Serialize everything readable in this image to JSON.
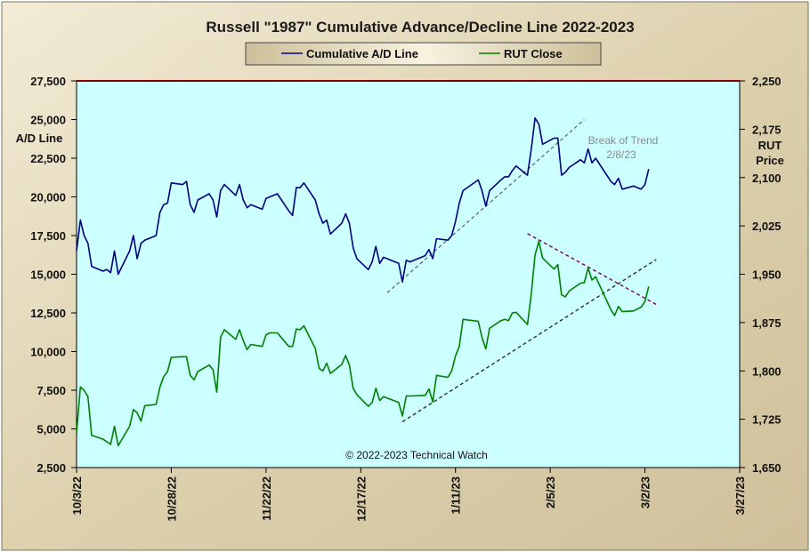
{
  "chart_data": {
    "type": "line",
    "title": "Russell \"1987\" Cumulative Advance/Decline Line 2022-2023",
    "legend": {
      "placement": "top-center",
      "entries": [
        {
          "label": "Cumulative A/D Line",
          "color": "#000080"
        },
        {
          "label": "RUT Close",
          "color": "#008000"
        }
      ]
    },
    "y_left": {
      "label_line1": "A/D Line",
      "range": [
        2500,
        27500
      ],
      "ticks": [
        2500,
        5000,
        7500,
        10000,
        12500,
        15000,
        17500,
        20000,
        22500,
        25000,
        27500
      ],
      "tick_labels": [
        "2,500",
        "5,000",
        "7,500",
        "10,000",
        "12,500",
        "15,000",
        "17,500",
        "20,000",
        "22,500",
        "25,000",
        "27,500"
      ]
    },
    "y_right": {
      "label_line1": "RUT",
      "label_line2": "Price",
      "range": [
        1650,
        2250
      ],
      "ticks": [
        1650,
        1725,
        1800,
        1875,
        1950,
        2025,
        2100,
        2175,
        2250
      ],
      "tick_labels": [
        "1,650",
        "1,725",
        "1,800",
        "1,875",
        "1,950",
        "2,025",
        "2,100",
        "2,175",
        "2,250"
      ]
    },
    "x_axis": {
      "start": "2022-10-03",
      "end": "2023-03-27",
      "ticks": [
        "2022-10-03",
        "2022-10-28",
        "2022-11-22",
        "2022-12-17",
        "2023-01-11",
        "2023-02-05",
        "2023-03-02",
        "2023-03-27"
      ],
      "tick_labels": [
        "10/3/22",
        "10/28/22",
        "11/22/22",
        "12/17/22",
        "1/11/23",
        "2/5/23",
        "3/2/23",
        "3/27/23"
      ]
    },
    "grid": false,
    "series": [
      {
        "name": "Cumulative A/D Line",
        "axis": "left",
        "color": "#000080",
        "points": [
          [
            "2022-10-03",
            16500
          ],
          [
            "2022-10-04",
            18500
          ],
          [
            "2022-10-05",
            17500
          ],
          [
            "2022-10-06",
            17000
          ],
          [
            "2022-10-07",
            15500
          ],
          [
            "2022-10-10",
            15200
          ],
          [
            "2022-10-11",
            15300
          ],
          [
            "2022-10-12",
            15100
          ],
          [
            "2022-10-13",
            16500
          ],
          [
            "2022-10-14",
            15000
          ],
          [
            "2022-10-17",
            16500
          ],
          [
            "2022-10-18",
            17500
          ],
          [
            "2022-10-19",
            16000
          ],
          [
            "2022-10-20",
            17000
          ],
          [
            "2022-10-21",
            17200
          ],
          [
            "2022-10-24",
            17500
          ],
          [
            "2022-10-25",
            19000
          ],
          [
            "2022-10-26",
            19500
          ],
          [
            "2022-10-27",
            19600
          ],
          [
            "2022-10-28",
            20900
          ],
          [
            "2022-10-31",
            20800
          ],
          [
            "2022-11-01",
            21000
          ],
          [
            "2022-11-02",
            19500
          ],
          [
            "2022-11-03",
            19000
          ],
          [
            "2022-11-04",
            19800
          ],
          [
            "2022-11-07",
            20200
          ],
          [
            "2022-11-08",
            19800
          ],
          [
            "2022-11-09",
            18700
          ],
          [
            "2022-11-10",
            20400
          ],
          [
            "2022-11-11",
            20800
          ],
          [
            "2022-11-14",
            20100
          ],
          [
            "2022-11-15",
            20800
          ],
          [
            "2022-11-16",
            19800
          ],
          [
            "2022-11-17",
            19300
          ],
          [
            "2022-11-18",
            19500
          ],
          [
            "2022-11-21",
            19200
          ],
          [
            "2022-11-22",
            19900
          ],
          [
            "2022-11-23",
            20000
          ],
          [
            "2022-11-25",
            20200
          ],
          [
            "2022-11-28",
            19100
          ],
          [
            "2022-11-29",
            18800
          ],
          [
            "2022-11-30",
            20600
          ],
          [
            "2022-12-01",
            20600
          ],
          [
            "2022-12-02",
            20900
          ],
          [
            "2022-12-05",
            19800
          ],
          [
            "2022-12-06",
            18900
          ],
          [
            "2022-12-07",
            18300
          ],
          [
            "2022-12-08",
            18500
          ],
          [
            "2022-12-09",
            17600
          ],
          [
            "2022-12-12",
            18300
          ],
          [
            "2022-12-13",
            18900
          ],
          [
            "2022-12-14",
            18300
          ],
          [
            "2022-12-15",
            16700
          ],
          [
            "2022-12-16",
            16000
          ],
          [
            "2022-12-19",
            15300
          ],
          [
            "2022-12-20",
            15800
          ],
          [
            "2022-12-21",
            16800
          ],
          [
            "2022-12-22",
            15700
          ],
          [
            "2022-12-23",
            16100
          ],
          [
            "2022-12-27",
            15700
          ],
          [
            "2022-12-28",
            14500
          ],
          [
            "2022-12-29",
            15900
          ],
          [
            "2022-12-30",
            15800
          ],
          [
            "2023-01-03",
            16200
          ],
          [
            "2023-01-04",
            16600
          ],
          [
            "2023-01-05",
            16000
          ],
          [
            "2023-01-06",
            17300
          ],
          [
            "2023-01-09",
            17200
          ],
          [
            "2023-01-10",
            17500
          ],
          [
            "2023-01-11",
            18400
          ],
          [
            "2023-01-12",
            19600
          ],
          [
            "2023-01-13",
            20400
          ],
          [
            "2023-01-17",
            21100
          ],
          [
            "2023-01-18",
            20400
          ],
          [
            "2023-01-19",
            19400
          ],
          [
            "2023-01-20",
            20400
          ],
          [
            "2023-01-23",
            21100
          ],
          [
            "2023-01-24",
            21300
          ],
          [
            "2023-01-25",
            21300
          ],
          [
            "2023-01-26",
            21700
          ],
          [
            "2023-01-27",
            22000
          ],
          [
            "2023-01-30",
            21400
          ],
          [
            "2023-01-31",
            23100
          ],
          [
            "2023-02-01",
            25100
          ],
          [
            "2023-02-02",
            24700
          ],
          [
            "2023-02-03",
            23400
          ],
          [
            "2023-02-06",
            23800
          ],
          [
            "2023-02-07",
            23800
          ],
          [
            "2023-02-08",
            21400
          ],
          [
            "2023-02-09",
            21600
          ],
          [
            "2023-02-10",
            21900
          ],
          [
            "2023-02-13",
            22400
          ],
          [
            "2023-02-14",
            22200
          ],
          [
            "2023-02-15",
            23100
          ],
          [
            "2023-02-16",
            22200
          ],
          [
            "2023-02-17",
            22500
          ],
          [
            "2023-02-21",
            21000
          ],
          [
            "2023-02-22",
            20800
          ],
          [
            "2023-02-23",
            21200
          ],
          [
            "2023-02-24",
            20500
          ],
          [
            "2023-02-27",
            20700
          ],
          [
            "2023-02-28",
            20600
          ],
          [
            "2023-03-01",
            20500
          ],
          [
            "2023-03-02",
            20800
          ],
          [
            "2023-03-03",
            21800
          ]
        ]
      },
      {
        "name": "RUT Close",
        "axis": "right",
        "color": "#008000",
        "points": [
          [
            "2022-10-03",
            1703
          ],
          [
            "2022-10-04",
            1775
          ],
          [
            "2022-10-05",
            1770
          ],
          [
            "2022-10-06",
            1760
          ],
          [
            "2022-10-07",
            1700
          ],
          [
            "2022-10-10",
            1694
          ],
          [
            "2022-10-11",
            1690
          ],
          [
            "2022-10-12",
            1686
          ],
          [
            "2022-10-13",
            1714
          ],
          [
            "2022-10-14",
            1684
          ],
          [
            "2022-10-17",
            1714
          ],
          [
            "2022-10-18",
            1740
          ],
          [
            "2022-10-19",
            1735
          ],
          [
            "2022-10-20",
            1722
          ],
          [
            "2022-10-21",
            1746
          ],
          [
            "2022-10-24",
            1748
          ],
          [
            "2022-10-25",
            1775
          ],
          [
            "2022-10-26",
            1791
          ],
          [
            "2022-10-27",
            1799
          ],
          [
            "2022-10-28",
            1821
          ],
          [
            "2022-10-31",
            1822
          ],
          [
            "2022-11-01",
            1822
          ],
          [
            "2022-11-02",
            1793
          ],
          [
            "2022-11-03",
            1786
          ],
          [
            "2022-11-04",
            1799
          ],
          [
            "2022-11-07",
            1809
          ],
          [
            "2022-11-08",
            1802
          ],
          [
            "2022-11-09",
            1767
          ],
          [
            "2022-11-10",
            1852
          ],
          [
            "2022-11-11",
            1864
          ],
          [
            "2022-11-14",
            1849
          ],
          [
            "2022-11-15",
            1864
          ],
          [
            "2022-11-16",
            1847
          ],
          [
            "2022-11-17",
            1833
          ],
          [
            "2022-11-18",
            1841
          ],
          [
            "2022-11-21",
            1838
          ],
          [
            "2022-11-22",
            1856
          ],
          [
            "2022-11-23",
            1859
          ],
          [
            "2022-11-25",
            1859
          ],
          [
            "2022-11-28",
            1838
          ],
          [
            "2022-11-29",
            1838
          ],
          [
            "2022-11-30",
            1865
          ],
          [
            "2022-12-01",
            1864
          ],
          [
            "2022-12-02",
            1870
          ],
          [
            "2022-12-05",
            1835
          ],
          [
            "2022-12-06",
            1804
          ],
          [
            "2022-12-07",
            1800
          ],
          [
            "2022-12-08",
            1812
          ],
          [
            "2022-12-09",
            1796
          ],
          [
            "2022-12-12",
            1810
          ],
          [
            "2022-12-13",
            1824
          ],
          [
            "2022-12-14",
            1809
          ],
          [
            "2022-12-15",
            1773
          ],
          [
            "2022-12-16",
            1763
          ],
          [
            "2022-12-19",
            1745
          ],
          [
            "2022-12-20",
            1751
          ],
          [
            "2022-12-21",
            1773
          ],
          [
            "2022-12-22",
            1754
          ],
          [
            "2022-12-23",
            1760
          ],
          [
            "2022-12-27",
            1751
          ],
          [
            "2022-12-28",
            1730
          ],
          [
            "2022-12-29",
            1761
          ],
          [
            "2022-12-30",
            1761
          ],
          [
            "2023-01-03",
            1762
          ],
          [
            "2023-01-04",
            1772
          ],
          [
            "2023-01-05",
            1752
          ],
          [
            "2023-01-06",
            1793
          ],
          [
            "2023-01-09",
            1790
          ],
          [
            "2023-01-10",
            1800
          ],
          [
            "2023-01-11",
            1823
          ],
          [
            "2023-01-12",
            1838
          ],
          [
            "2023-01-13",
            1880
          ],
          [
            "2023-01-17",
            1877
          ],
          [
            "2023-01-18",
            1852
          ],
          [
            "2023-01-19",
            1834
          ],
          [
            "2023-01-20",
            1866
          ],
          [
            "2023-01-23",
            1878
          ],
          [
            "2023-01-24",
            1880
          ],
          [
            "2023-01-25",
            1878
          ],
          [
            "2023-01-26",
            1890
          ],
          [
            "2023-01-27",
            1891
          ],
          [
            "2023-01-30",
            1872
          ],
          [
            "2023-01-31",
            1920
          ],
          [
            "2023-02-01",
            1980
          ],
          [
            "2023-02-02",
            2001
          ],
          [
            "2023-02-03",
            1975
          ],
          [
            "2023-02-06",
            1958
          ],
          [
            "2023-02-07",
            1965
          ],
          [
            "2023-02-08",
            1918
          ],
          [
            "2023-02-09",
            1915
          ],
          [
            "2023-02-10",
            1924
          ],
          [
            "2023-02-13",
            1936
          ],
          [
            "2023-02-14",
            1937
          ],
          [
            "2023-02-15",
            1960
          ],
          [
            "2023-02-16",
            1941
          ],
          [
            "2023-02-17",
            1946
          ],
          [
            "2023-02-21",
            1895
          ],
          [
            "2023-02-22",
            1886
          ],
          [
            "2023-02-23",
            1900
          ],
          [
            "2023-02-24",
            1892
          ],
          [
            "2023-02-27",
            1893
          ],
          [
            "2023-02-28",
            1896
          ],
          [
            "2023-03-01",
            1899
          ],
          [
            "2023-03-02",
            1908
          ],
          [
            "2023-03-03",
            1931
          ]
        ]
      }
    ],
    "trendlines": [
      {
        "axis": "left",
        "style": "dashed",
        "color": "#707070",
        "from": [
          "2022-12-24",
          13800
        ],
        "to": [
          "2023-02-14",
          25000
        ]
      },
      {
        "axis": "right",
        "style": "dashed",
        "color": "#303030",
        "from": [
          "2022-12-28",
          1721
        ],
        "to": [
          "2023-03-05",
          1973
        ]
      },
      {
        "axis": "right",
        "style": "dashed",
        "color": "#800060",
        "from": [
          "2023-01-30",
          2013
        ],
        "to": [
          "2023-03-05",
          1903
        ]
      }
    ],
    "top_boundary_color": "#800000",
    "annotations": {
      "trend_line1": "Break of Trend",
      "trend_line2": "2/8/23",
      "copyright": "© 2022-2023  Technical Watch"
    }
  }
}
